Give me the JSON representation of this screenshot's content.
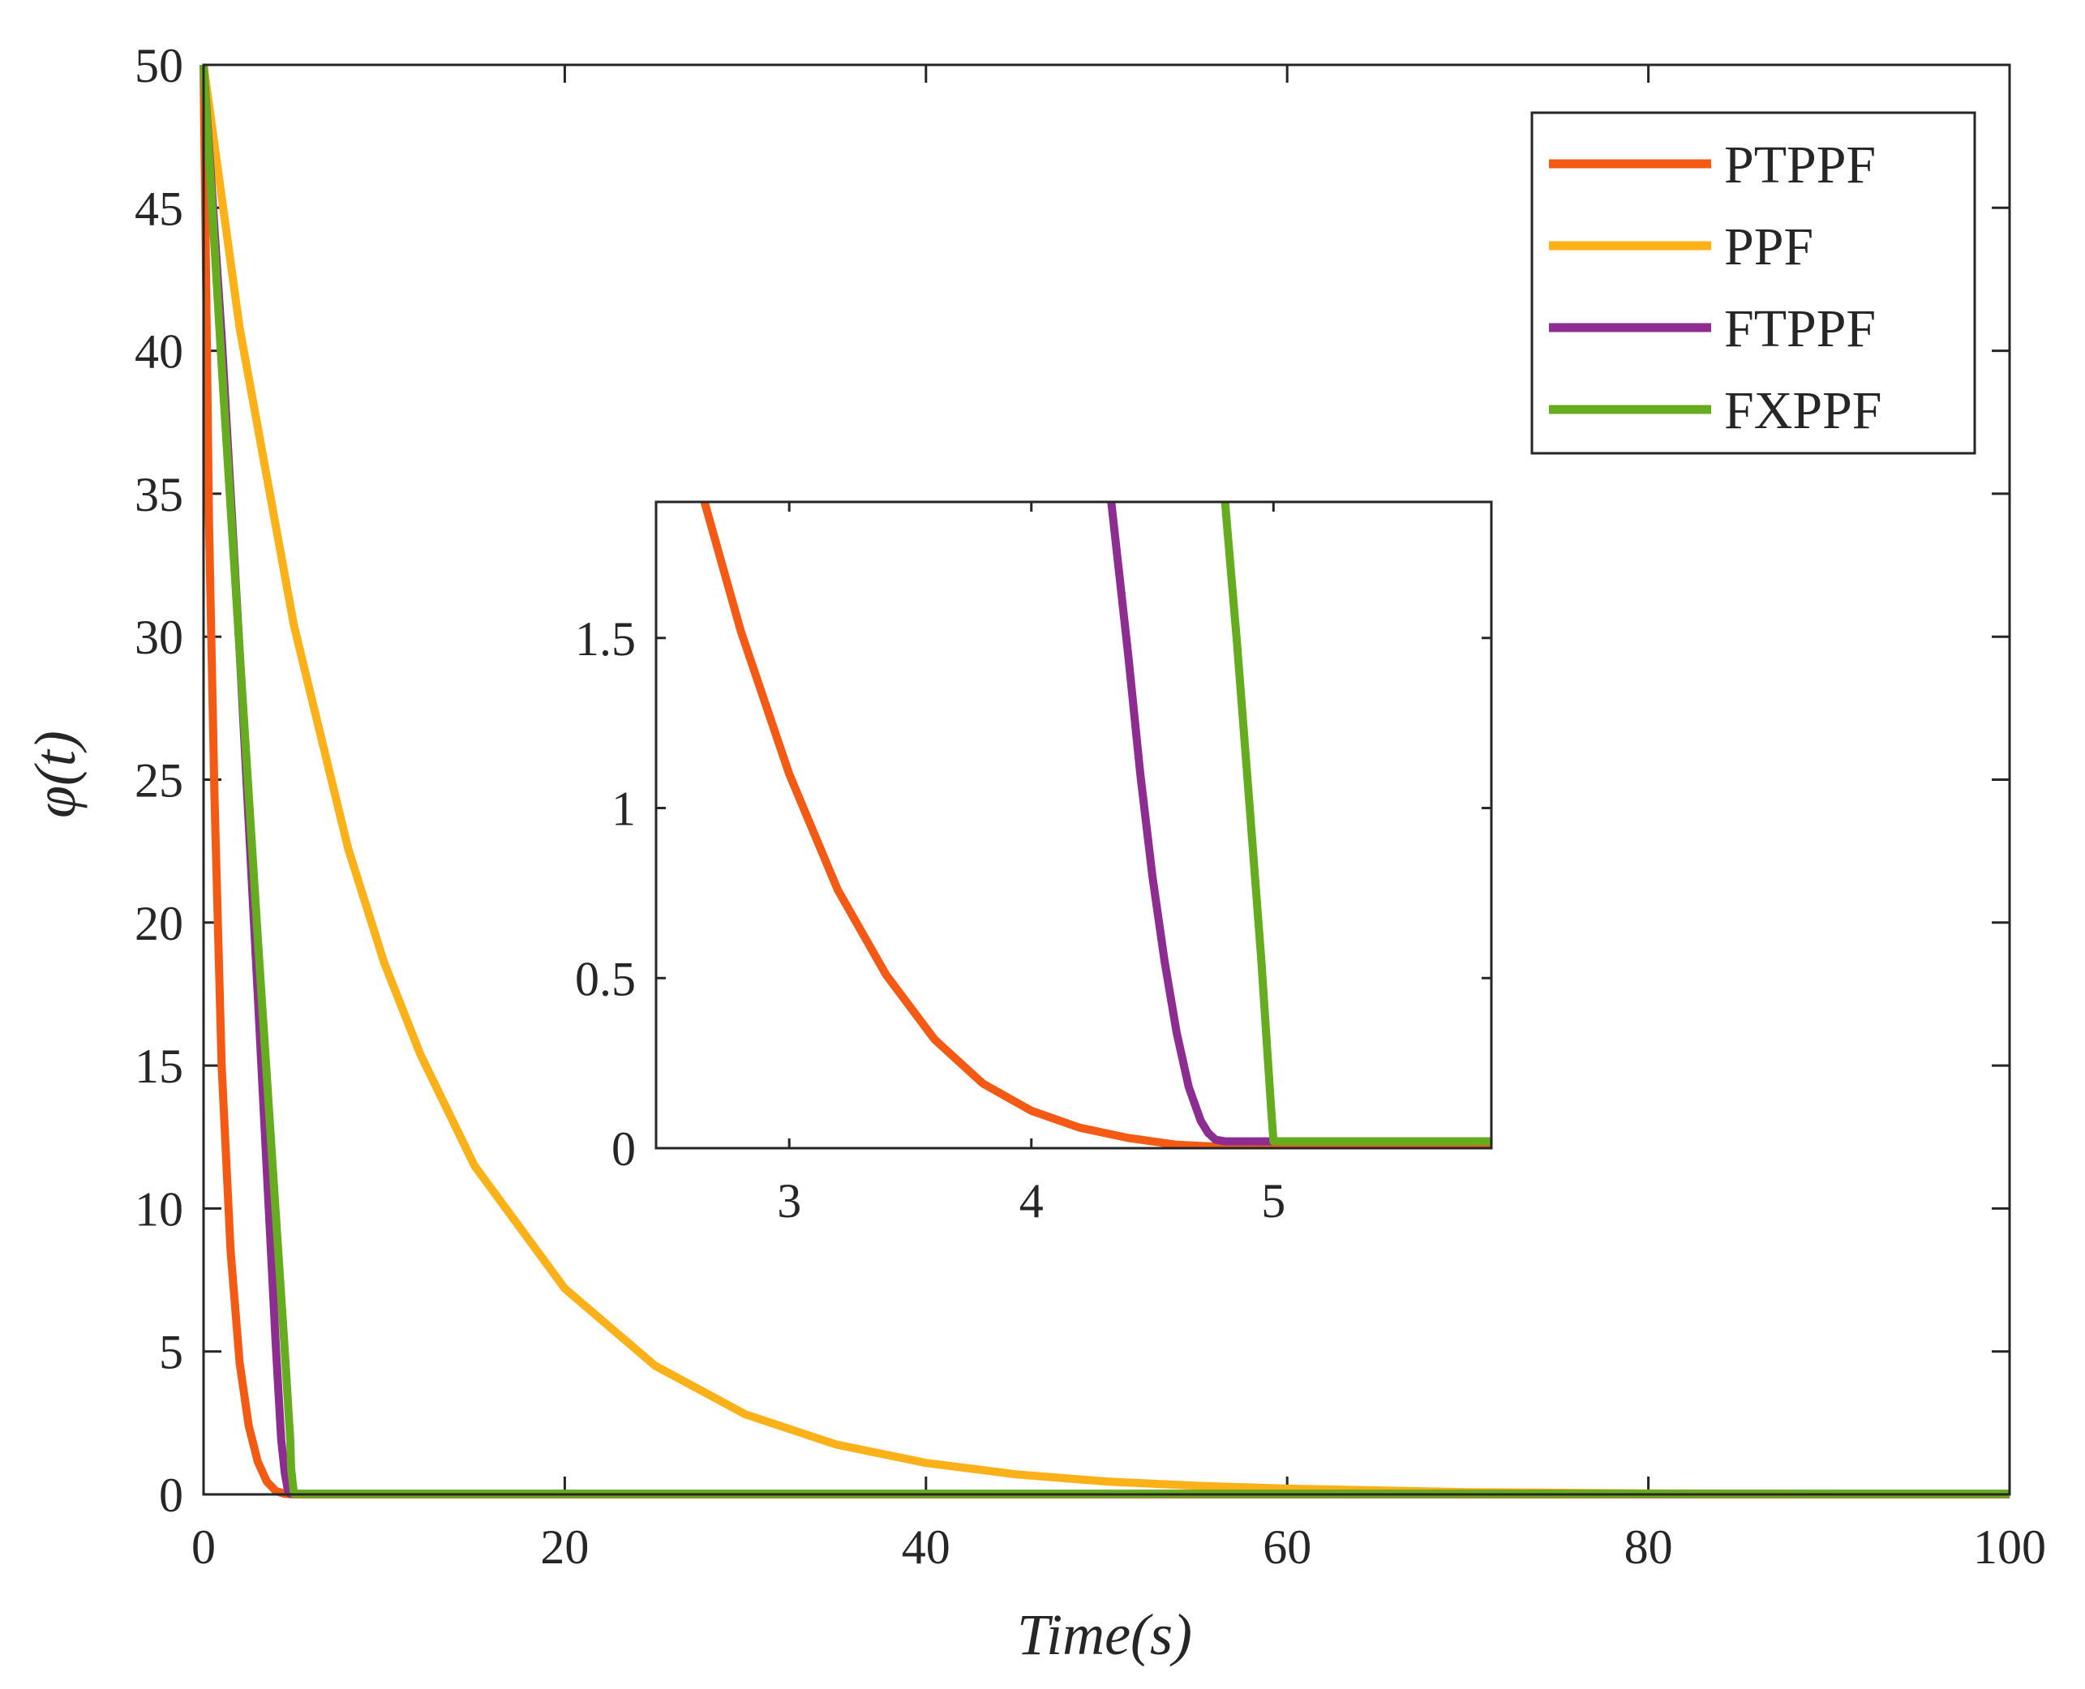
{
  "chart_data": {
    "type": "line",
    "title": "",
    "xlabel": "Time(s)",
    "ylabel": "φ(t)",
    "xlim": [
      0,
      100
    ],
    "ylim": [
      0,
      50
    ],
    "xticks": [
      "0",
      "20",
      "40",
      "60",
      "80",
      "100"
    ],
    "yticks": [
      "0",
      "5",
      "10",
      "15",
      "20",
      "25",
      "30",
      "35",
      "40",
      "45",
      "50"
    ],
    "legend_position": "top-right",
    "series": [
      {
        "name": "PTPPF",
        "color": "#F55A14",
        "x": [
          0,
          0.3,
          0.6,
          1,
          1.5,
          2,
          2.5,
          3,
          3.5,
          4,
          4.5,
          5,
          10,
          100
        ],
        "y": [
          50,
          34,
          24.5,
          15,
          8.5,
          4.6,
          2.4,
          1.15,
          0.45,
          0.12,
          0.02,
          0,
          0,
          0
        ]
      },
      {
        "name": "PPF",
        "color": "#FBB117",
        "x": [
          0,
          2,
          5,
          8,
          10,
          12,
          15,
          20,
          25,
          30,
          35,
          40,
          45,
          50,
          55,
          60,
          70,
          80,
          100
        ],
        "y": [
          50,
          40.8,
          30.4,
          22.6,
          18.6,
          15.4,
          11.5,
          7.2,
          4.5,
          2.8,
          1.75,
          1.1,
          0.7,
          0.45,
          0.3,
          0.2,
          0.08,
          0.03,
          0
        ]
      },
      {
        "name": "FTPPF",
        "color": "#8E2D91",
        "x": [
          0,
          1,
          2,
          3,
          4,
          4.3,
          4.5,
          4.65,
          4.75,
          4.8,
          5,
          10,
          100
        ],
        "y": [
          50,
          40.5,
          29.5,
          17.5,
          5.2,
          1.9,
          0.75,
          0.2,
          0.04,
          0.02,
          0.02,
          0.02,
          0.02
        ]
      },
      {
        "name": "FXPPF",
        "color": "#65AC1E",
        "x": [
          0,
          1,
          2,
          3,
          4,
          4.5,
          4.8,
          4.85,
          5,
          10,
          100
        ],
        "y": [
          50,
          39.5,
          29.5,
          19.5,
          9.8,
          5,
          1.9,
          0.9,
          0.02,
          0.02,
          0.02
        ]
      }
    ],
    "inset": {
      "xlim": [
        2.45,
        5.9
      ],
      "ylim": [
        0,
        1.9
      ],
      "xticks": [
        "3",
        "4",
        "5"
      ],
      "yticks": [
        "0",
        "0.5",
        "1",
        "1.5"
      ],
      "series": [
        {
          "name": "PTPPF",
          "x": [
            2.65,
            2.8,
            3.0,
            3.2,
            3.4,
            3.6,
            3.8,
            4.0,
            4.2,
            4.4,
            4.6,
            4.8,
            5.0,
            5.9
          ],
          "y": [
            1.9,
            1.52,
            1.1,
            0.76,
            0.51,
            0.32,
            0.19,
            0.11,
            0.06,
            0.03,
            0.01,
            0.003,
            0.0,
            0.0
          ]
        },
        {
          "name": "FTPPF",
          "x": [
            4.33,
            4.4,
            4.45,
            4.5,
            4.55,
            4.6,
            4.65,
            4.7,
            4.73,
            4.76,
            4.8,
            5.0,
            5.9
          ],
          "y": [
            1.9,
            1.45,
            1.1,
            0.8,
            0.55,
            0.34,
            0.18,
            0.08,
            0.045,
            0.025,
            0.02,
            0.02,
            0.02
          ]
        },
        {
          "name": "FXPPF",
          "x": [
            4.8,
            4.85,
            4.9,
            4.95,
            4.99,
            5.0,
            5.9
          ],
          "y": [
            1.9,
            1.48,
            1.02,
            0.55,
            0.12,
            0.02,
            0.02
          ]
        }
      ]
    }
  }
}
